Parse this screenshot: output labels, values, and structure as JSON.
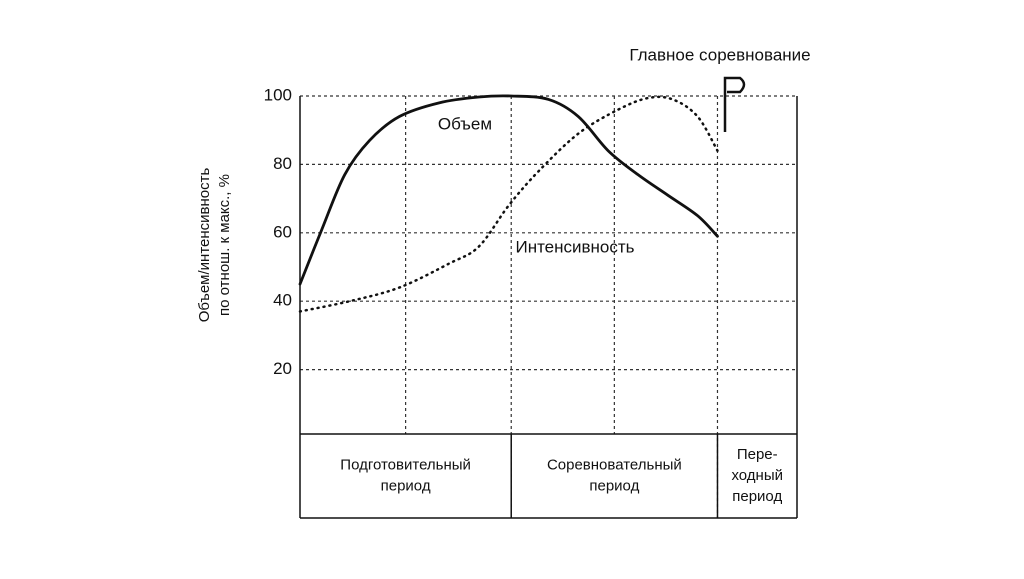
{
  "chart_data": {
    "type": "line",
    "title": "Главное соревнование",
    "y_label": [
      "Объем/интенсивность",
      "по отнош. к макс., %"
    ],
    "ylim": [
      0,
      100
    ],
    "yticks": [
      20,
      40,
      60,
      80,
      100
    ],
    "xlim": [
      0,
      100
    ],
    "grid": true,
    "series": [
      {
        "name": "Объем",
        "style": "solid",
        "color": "#111",
        "x": [
          0,
          4.4,
          9,
          14,
          20,
          28,
          36,
          42.5,
          50,
          56,
          62,
          68,
          74,
          80,
          84
        ],
        "values": [
          45,
          61,
          77,
          87,
          94,
          98,
          99.7,
          100,
          99,
          94,
          84,
          77,
          71,
          65,
          59
        ]
      },
      {
        "name": "Интенсивность",
        "style": "dotted",
        "color": "#111",
        "x": [
          0,
          10,
          20,
          30,
          36,
          42,
          48,
          56,
          64,
          70,
          75,
          80,
          84
        ],
        "values": [
          37,
          40,
          44,
          51,
          56,
          68,
          78,
          89,
          96,
          99.4,
          99,
          94,
          84
        ]
      }
    ],
    "periods": [
      {
        "label": [
          "Подготовительный",
          "период"
        ],
        "from": 0,
        "to": 42.5
      },
      {
        "label": [
          "Соревновательный",
          "период"
        ],
        "from": 42.5,
        "to": 84
      },
      {
        "label": [
          "Пере-",
          "ходный",
          "период"
        ],
        "from": 84,
        "to": 100
      }
    ]
  }
}
